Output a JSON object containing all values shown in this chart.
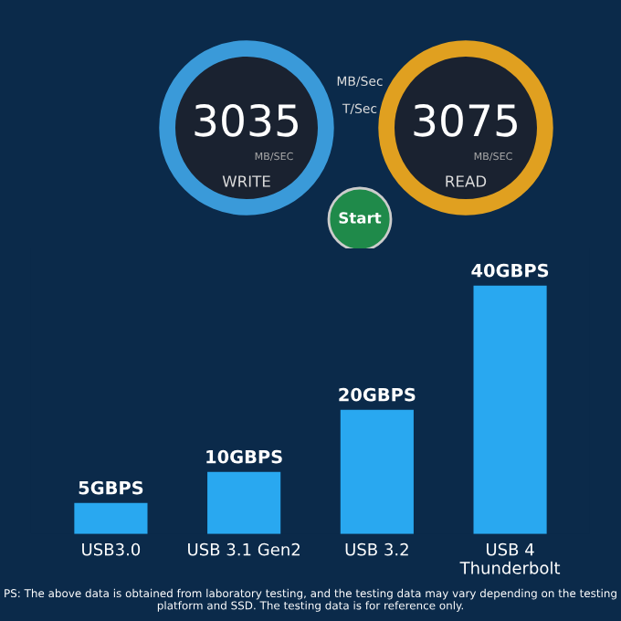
{
  "chart_data": {
    "type": "bar",
    "categories": [
      "USB3.0",
      "USB 3.1 Gen2",
      "USB 3.2",
      "USB 4\nThunderbolt"
    ],
    "values": [
      5,
      10,
      20,
      40
    ],
    "value_labels": [
      "5GBPS",
      "10GBPS",
      "20GBPS",
      "40GBPS"
    ],
    "color": "#29a8f0",
    "data_labels": true,
    "annotations": [
      "MB/Sec",
      "T/Sec",
      "3035",
      "MB/SEC",
      "WRITE",
      "3075",
      "MB/SEC",
      "READ",
      "Start",
      "PS: The above data is obtained from laboratory testing, and the testing data may vary depending on the testing platform and SSD. The testing data is for reference only."
    ]
  }
}
